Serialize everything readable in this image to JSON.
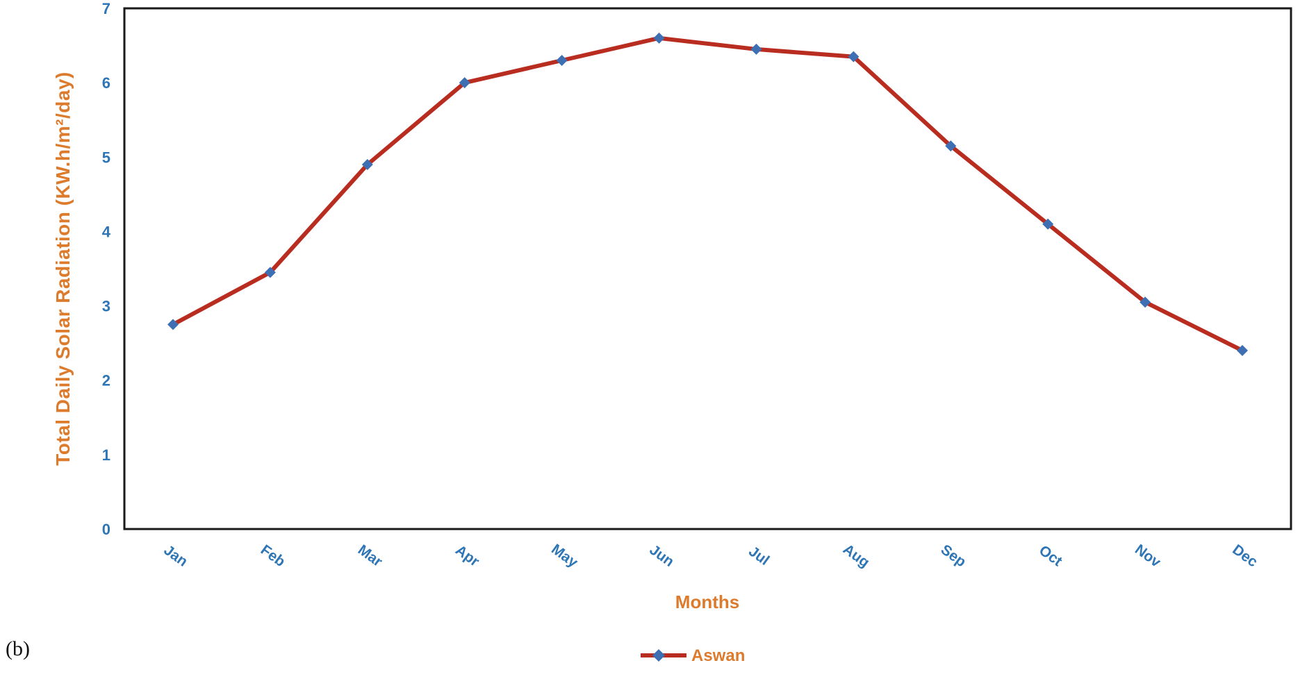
{
  "figure": {
    "label": "(b)"
  },
  "chart_data": {
    "type": "line",
    "title": "",
    "xlabel": "Months",
    "ylabel": "Total Daily Solar Radiation  (KW.h/m²/day)",
    "categories": [
      "Jan",
      "Feb",
      "Mar",
      "Apr",
      "May",
      "Jun",
      "Jul",
      "Aug",
      "Sep",
      "Oct",
      "Nov",
      "Dec"
    ],
    "series": [
      {
        "name": "Aswan",
        "values": [
          2.75,
          3.45,
          4.9,
          6.0,
          6.3,
          6.6,
          6.45,
          6.35,
          5.15,
          4.1,
          3.05,
          2.4
        ]
      }
    ],
    "ylim": [
      0,
      7
    ],
    "yticks": [
      0,
      1,
      2,
      3,
      4,
      5,
      6,
      7
    ],
    "grid": false,
    "legend_position": "bottom",
    "colors": {
      "line": "#b92d21",
      "marker": "#3e6fb3",
      "tick_labels": "#2e75b6",
      "axis_titles": "#dd7b2d",
      "plot_border": "#1a1a1a"
    }
  }
}
